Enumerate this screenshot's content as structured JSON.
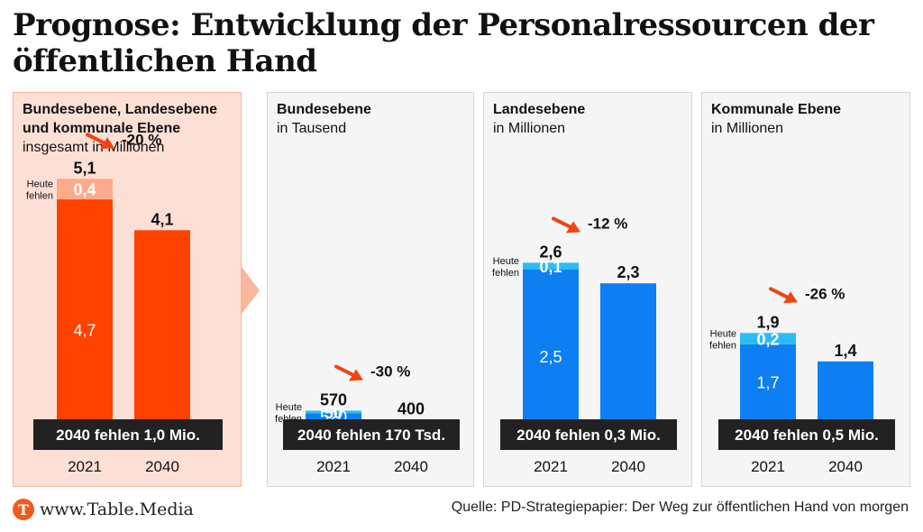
{
  "title": "Prognose: Entwicklung der Personalressourcen der öffentlichen Hand",
  "source": "Quelle: PD-Strategiepapier: Der Weg zur öffentlichen Hand von morgen",
  "logo": {
    "text": "www.Table.Media",
    "icon": "T"
  },
  "colors": {
    "orange_bar": "#ff4200",
    "orange_light": "#fbaa8b",
    "blue_bar": "#0d7ff3",
    "blue_light": "#2bbcf5",
    "arrow": "#f04412",
    "banner": "#222222"
  },
  "heute_label": [
    "Heute",
    "fehlen"
  ],
  "chart_data": [
    {
      "type": "bar",
      "title": "Bundesebene, Landesebene und kommunale Ebene",
      "subtitle": "insgesamt in Millionen",
      "theme": "orange",
      "categories": [
        "2021",
        "2040"
      ],
      "total_2021": 5.1,
      "total_2021_label": "5,1",
      "base_2021": 4.7,
      "base_2021_label": "4,7",
      "missing_2021": 0.4,
      "missing_2021_label": "0,4",
      "value_2040": 4.1,
      "value_2040_label": "4,1",
      "change_label": "-20 %",
      "banner": "2040 fehlen 1,0 Mio."
    },
    {
      "type": "bar",
      "title": "Bundesebene",
      "subtitle": "in Tausend",
      "theme": "blue",
      "categories": [
        "2021",
        "2040"
      ],
      "total_2021": 570,
      "total_2021_label": "570",
      "base_2021": 520,
      "base_2021_label": "520",
      "missing_2021": 50,
      "missing_2021_label": "50",
      "value_2040": 400,
      "value_2040_label": "400",
      "change_label": "-30 %",
      "banner": "2040 fehlen 170 Tsd."
    },
    {
      "type": "bar",
      "title": "Landesebene",
      "subtitle": "in Millionen",
      "theme": "blue",
      "categories": [
        "2021",
        "2040"
      ],
      "total_2021": 2.6,
      "total_2021_label": "2,6",
      "base_2021": 2.5,
      "base_2021_label": "2,5",
      "missing_2021": 0.1,
      "missing_2021_label": "0,1",
      "value_2040": 2.3,
      "value_2040_label": "2,3",
      "change_label": "-12 %",
      "banner": "2040 fehlen 0,3 Mio."
    },
    {
      "type": "bar",
      "title": "Kommunale Ebene",
      "subtitle": "in Millionen",
      "theme": "blue",
      "categories": [
        "2021",
        "2040"
      ],
      "total_2021": 1.9,
      "total_2021_label": "1,9",
      "base_2021": 1.7,
      "base_2021_label": "1,7",
      "missing_2021": 0.2,
      "missing_2021_label": "0,2",
      "value_2040": 1.4,
      "value_2040_label": "1,4",
      "change_label": "-26 %",
      "banner": "2040 fehlen 0,5 Mio."
    }
  ]
}
